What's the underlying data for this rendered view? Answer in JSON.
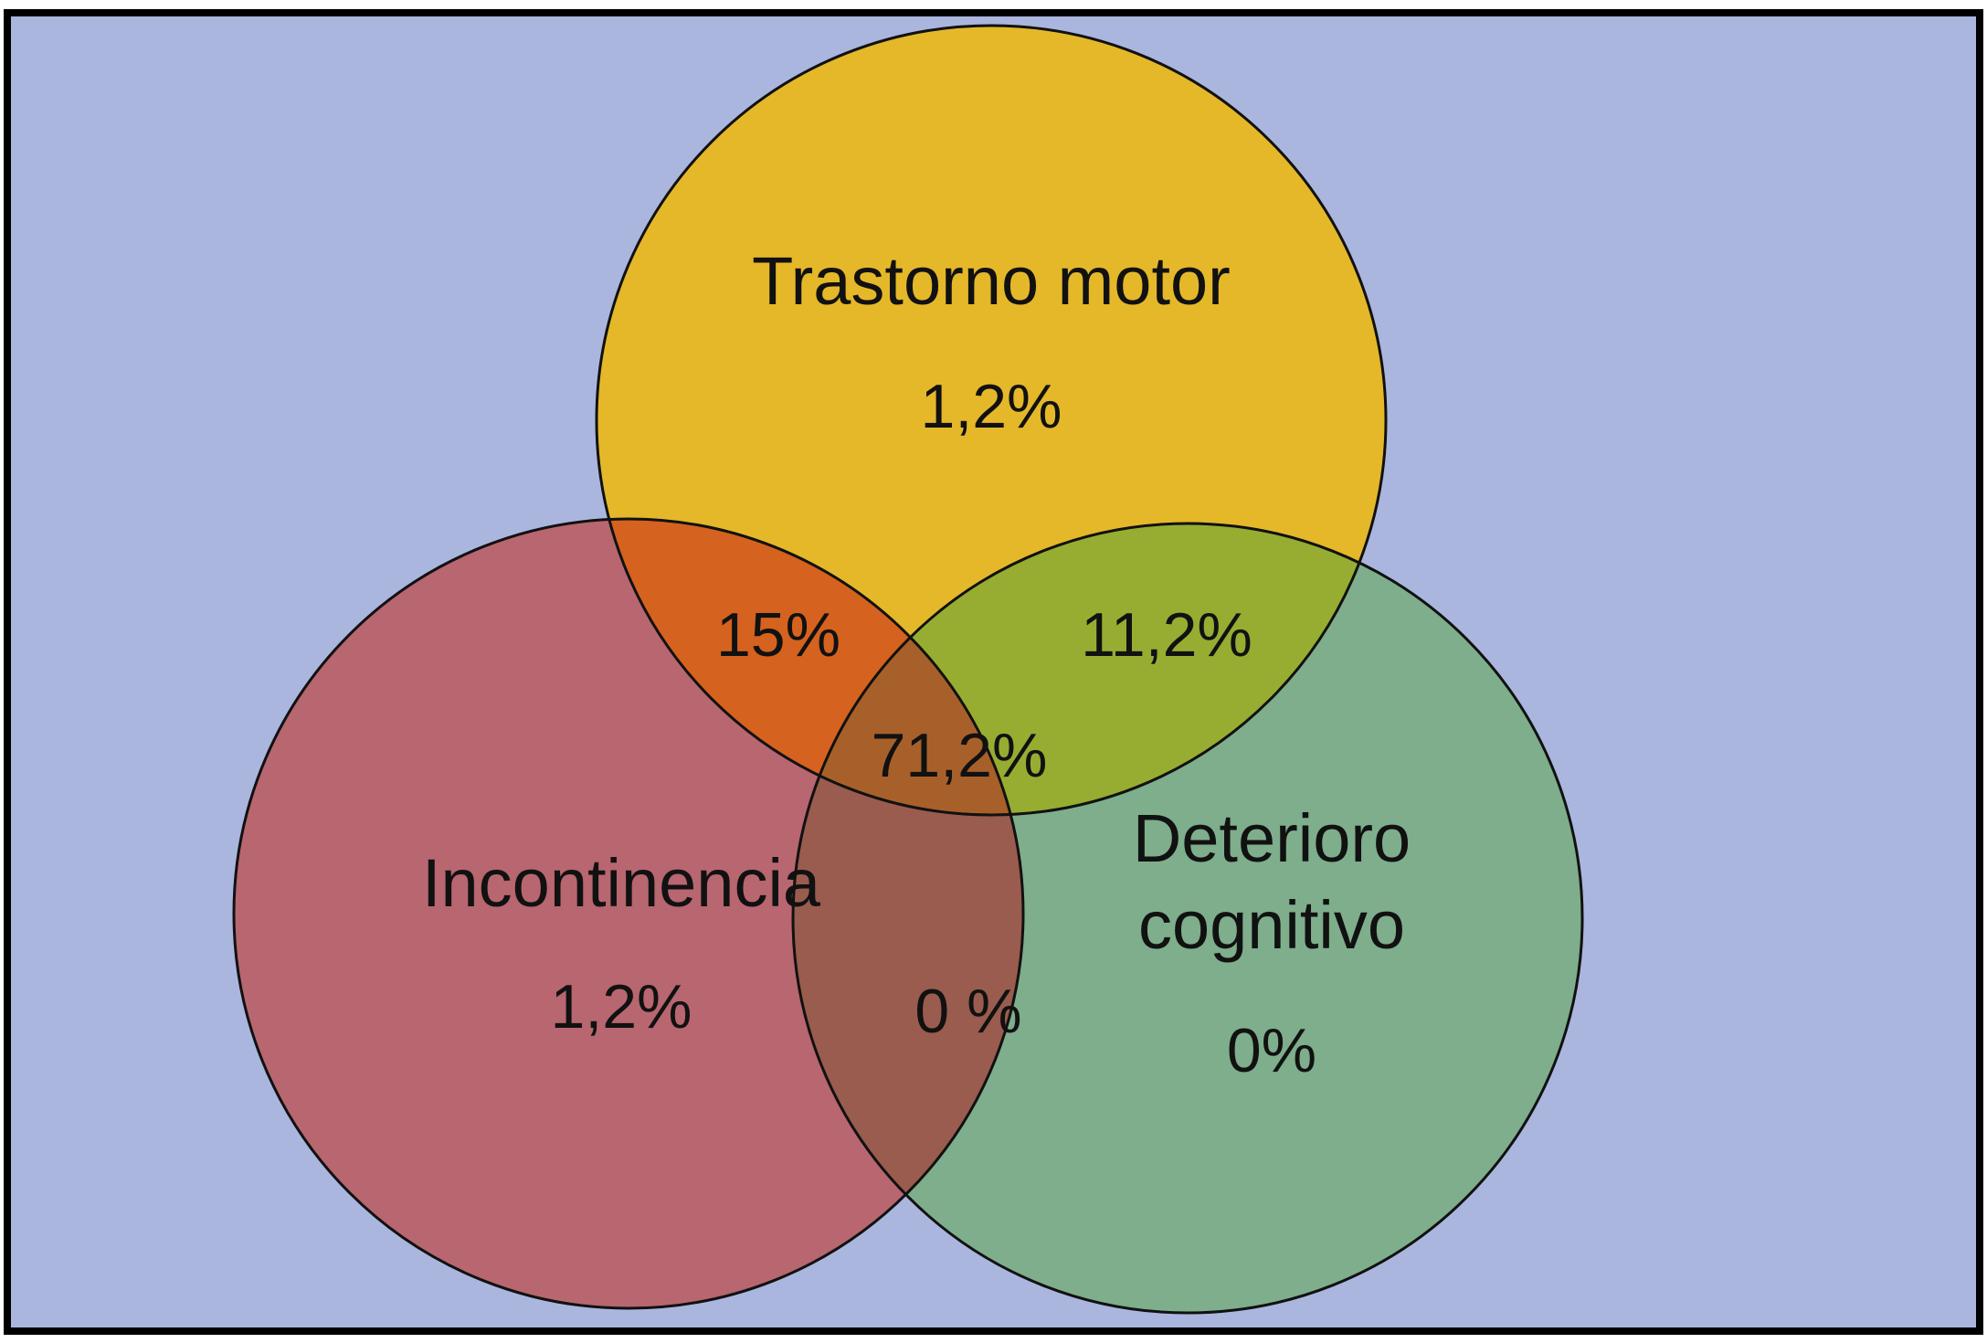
{
  "diagram": {
    "type": "venn",
    "colors": {
      "background": "#aab6de",
      "border": "#000000",
      "motor": "#e5b82a",
      "incontinence": "#b86670",
      "cognitive": "#7eae8c",
      "motor_incontinence": "#d5621f",
      "motor_cognitive": "#96ad32",
      "incontinence_cognitive": "#995c4e",
      "all_three": "#a8602a"
    },
    "sets": {
      "motor": {
        "name": "Trastorno motor",
        "only": "1,2%"
      },
      "incontinence": {
        "name": "Incontinencia",
        "only": "1,2%"
      },
      "cognitive": {
        "name_line1": "Deterioro",
        "name_line2": "cognitivo",
        "only": "0%"
      }
    },
    "intersections": {
      "motor_incontinence": "15%",
      "motor_cognitive": "11,2%",
      "incontinence_cognitive": "0 %",
      "all_three": "71,2%"
    }
  }
}
